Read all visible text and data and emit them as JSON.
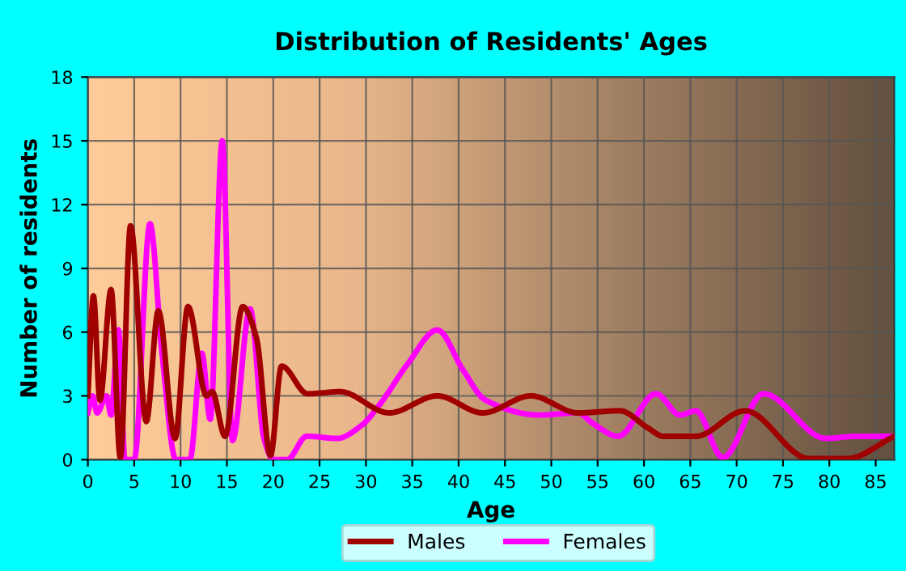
{
  "chart_data": {
    "type": "line",
    "title": "Distribution of Residents' Ages",
    "xlabel": "Age",
    "ylabel": "Number of residents",
    "xlim": [
      0,
      87
    ],
    "ylim": [
      0,
      18
    ],
    "xticks": [
      0,
      5,
      10,
      15,
      20,
      25,
      30,
      35,
      40,
      45,
      50,
      55,
      60,
      65,
      70,
      75,
      80,
      85
    ],
    "yticks": [
      0,
      3,
      6,
      9,
      12,
      15,
      18
    ],
    "grid": true,
    "legend": "bottom",
    "line_style": "solid",
    "marker": "none",
    "series": [
      {
        "name": "Males",
        "color": "#a00000",
        "x": [
          0,
          0.6,
          1.3,
          2.5,
          3.5,
          4.6,
          6.3,
          7.6,
          9.4,
          10.8,
          12.8,
          13.4,
          14.8,
          16.7,
          18.2,
          19.7,
          20.9,
          23.7,
          27.2,
          32.5,
          37.7,
          42.6,
          47.8,
          52.9,
          57.4,
          60.4,
          62.1,
          65.6,
          70.9,
          77.8,
          81.9,
          87
        ],
        "values": [
          3,
          7.7,
          2.8,
          8,
          0.1,
          11,
          1.8,
          7,
          1,
          7.2,
          3,
          3.2,
          1.1,
          7.2,
          5.7,
          0.2,
          4.4,
          3.1,
          3.2,
          2.2,
          3,
          2.2,
          3,
          2.2,
          2.3,
          1.5,
          1.1,
          1.1,
          2.3,
          0.05,
          0.05,
          1.1
        ]
      },
      {
        "name": "Females",
        "color": "#ff00ff",
        "x": [
          0,
          0.5,
          1,
          2,
          2.5,
          3.3,
          4,
          5,
          6.7,
          8,
          9.5,
          11,
          12.3,
          13.2,
          14.5,
          15.6,
          17.5,
          19,
          20,
          21.5,
          23.6,
          26.9,
          29.5,
          31.5,
          34.5,
          37.7,
          40.5,
          42.9,
          48.7,
          52.9,
          54.5,
          57.2,
          61.3,
          63.9,
          65.6,
          68.5,
          72.9,
          79.6,
          82.9,
          87
        ],
        "values": [
          2.2,
          3,
          2.2,
          3,
          2.1,
          6.1,
          0,
          0,
          11.1,
          5,
          0,
          0,
          5,
          1.9,
          15,
          0.9,
          7.1,
          1,
          0,
          0,
          1.1,
          1,
          1.6,
          2.6,
          4.5,
          6.1,
          4.2,
          2.8,
          2.1,
          2.2,
          1.7,
          1.1,
          3.1,
          2.1,
          2.3,
          0.1,
          3.1,
          1,
          1.1,
          1.1
        ]
      }
    ]
  }
}
